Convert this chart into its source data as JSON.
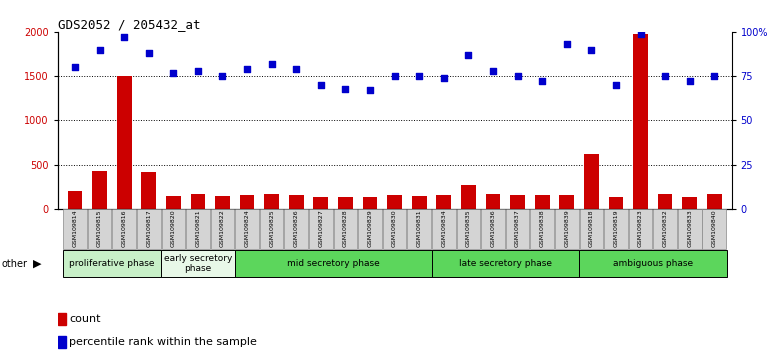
{
  "title": "GDS2052 / 205432_at",
  "samples": [
    "GSM109814",
    "GSM109815",
    "GSM109816",
    "GSM109817",
    "GSM109820",
    "GSM109821",
    "GSM109822",
    "GSM109824",
    "GSM109825",
    "GSM109826",
    "GSM109827",
    "GSM109828",
    "GSM109829",
    "GSM109830",
    "GSM109831",
    "GSM109834",
    "GSM109835",
    "GSM109836",
    "GSM109837",
    "GSM109838",
    "GSM109839",
    "GSM109818",
    "GSM109819",
    "GSM109823",
    "GSM109832",
    "GSM109833",
    "GSM109840"
  ],
  "counts": [
    200,
    430,
    1500,
    420,
    150,
    170,
    150,
    160,
    170,
    160,
    130,
    130,
    130,
    160,
    140,
    160,
    270,
    170,
    160,
    160,
    160,
    620,
    130,
    1980,
    170,
    130,
    170
  ],
  "percentiles": [
    80,
    90,
    97,
    88,
    77,
    78,
    75,
    79,
    82,
    79,
    70,
    68,
    67,
    75,
    75,
    74,
    87,
    78,
    75,
    72,
    93,
    90,
    70,
    99,
    75,
    72,
    75
  ],
  "phases": [
    {
      "label": "proliferative phase",
      "start": 0,
      "end": 4,
      "color": "#c8f0c8"
    },
    {
      "label": "early secretory\nphase",
      "start": 4,
      "end": 7,
      "color": "#e8f8e8"
    },
    {
      "label": "mid secretory phase",
      "start": 7,
      "end": 15,
      "color": "#5cd65c"
    },
    {
      "label": "late secretory phase",
      "start": 15,
      "end": 21,
      "color": "#5cd65c"
    },
    {
      "label": "ambiguous phase",
      "start": 21,
      "end": 27,
      "color": "#5cd65c"
    }
  ],
  "bar_color": "#cc0000",
  "dot_color": "#0000cc",
  "ylim_left": [
    0,
    2000
  ],
  "ylim_right": [
    0,
    100
  ],
  "yticks_left": [
    0,
    500,
    1000,
    1500,
    2000
  ],
  "yticks_right": [
    0,
    25,
    50,
    75,
    100
  ],
  "ytick_labels_right": [
    "0",
    "25",
    "50",
    "75",
    "100%"
  ],
  "grid_values": [
    500,
    1000,
    1500
  ],
  "bar_width": 0.6,
  "plot_bg": "#ffffff"
}
